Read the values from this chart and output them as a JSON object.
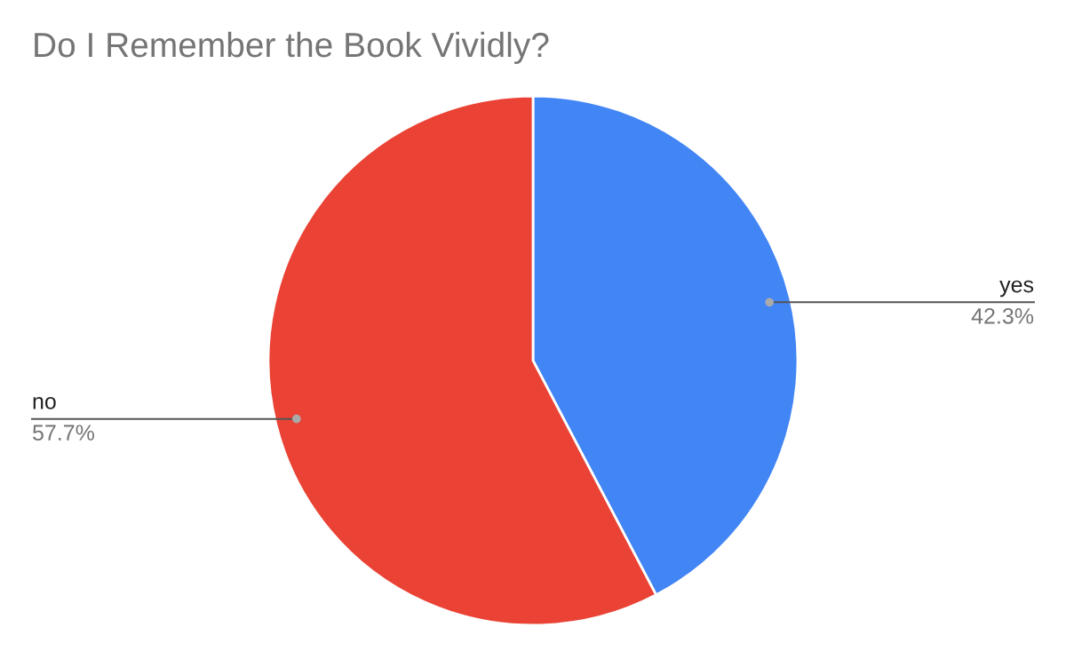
{
  "chart_data": {
    "type": "pie",
    "title": "Do I Remember the Book Vividly?",
    "categories": [
      "yes",
      "no"
    ],
    "values": [
      42.3,
      57.7
    ],
    "colors": [
      "#4285f4",
      "#ea4335"
    ],
    "value_labels": [
      "42.3%",
      "57.7%"
    ],
    "legend": false
  }
}
